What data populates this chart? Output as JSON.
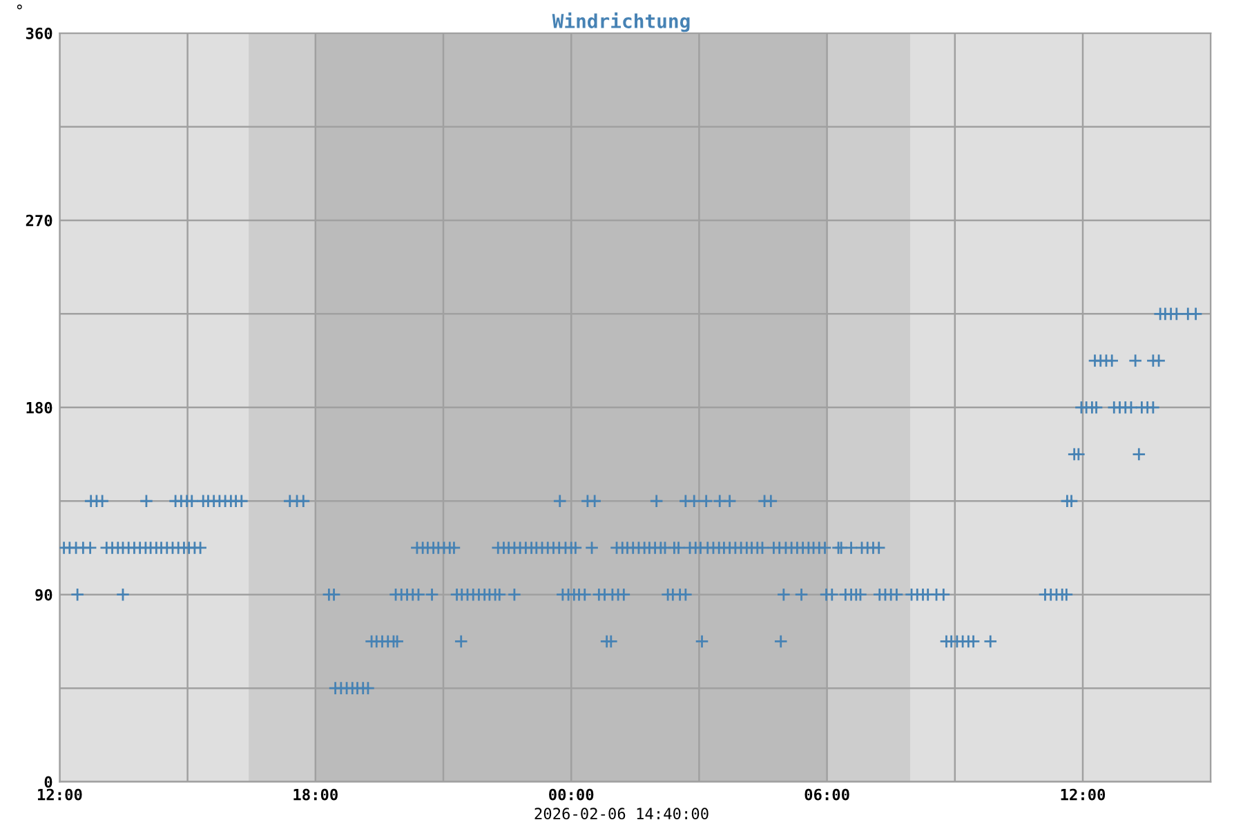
{
  "chart_data": {
    "type": "scatter",
    "title": "Windrichtung",
    "ylabel": "°",
    "annotations": [
      "2026-02-06 14:40:00"
    ],
    "xlim": [
      "2026-02-05T12:00",
      "2026-02-06T15:00"
    ],
    "ylim": [
      0,
      360
    ],
    "xticks": [
      {
        "value": "2026-02-05T12:00",
        "label": "12:00"
      },
      {
        "value": "2026-02-05T15:00",
        "label": null
      },
      {
        "value": "2026-02-05T18:00",
        "label": "18:00"
      },
      {
        "value": "2026-02-05T21:00",
        "label": null
      },
      {
        "value": "2026-02-06T00:00",
        "label": "00:00"
      },
      {
        "value": "2026-02-06T03:00",
        "label": null
      },
      {
        "value": "2026-02-06T06:00",
        "label": "06:00"
      },
      {
        "value": "2026-02-06T09:00",
        "label": null
      },
      {
        "value": "2026-02-06T12:00",
        "label": "12:00"
      },
      {
        "value": "2026-02-06T15:00",
        "label": null
      }
    ],
    "yticks": [
      0,
      {
        "value": 45,
        "label": null
      },
      90,
      {
        "value": 135,
        "label": null
      },
      180,
      {
        "value": 225,
        "label": null
      },
      270,
      {
        "value": 315,
        "label": null
      },
      360
    ],
    "grid": true,
    "legend": false,
    "marker": "cross",
    "bands": [
      {
        "axis": "x",
        "from": "2026-02-05T16:26",
        "to": "2026-02-05T18:00",
        "color": "#cdcdcd"
      },
      {
        "axis": "x",
        "from": "2026-02-05T18:00",
        "to": "2026-02-06T06:00",
        "color": "#bbbbbb"
      },
      {
        "axis": "x",
        "from": "2026-02-06T06:00",
        "to": "2026-02-06T07:57",
        "color": "#cdcdcd"
      }
    ],
    "series": [
      {
        "color": "#4682b4",
        "x": [
          "2026-02-05T12:06",
          "2026-02-05T12:14",
          "2026-02-05T12:23",
          "2026-02-05T12:33",
          "2026-02-05T12:43",
          "2026-02-05T12:25",
          "2026-02-05T12:44",
          "2026-02-05T12:52",
          "2026-02-05T13:00",
          "2026-02-05T13:06",
          "2026-02-05T13:14",
          "2026-02-05T13:22",
          "2026-02-05T13:29",
          "2026-02-05T13:37",
          "2026-02-05T13:45",
          "2026-02-05T13:53",
          "2026-02-05T14:01",
          "2026-02-05T14:08",
          "2026-02-05T14:16",
          "2026-02-05T14:23",
          "2026-02-05T14:31",
          "2026-02-05T14:39",
          "2026-02-05T14:47",
          "2026-02-05T14:55",
          "2026-02-05T15:02",
          "2026-02-05T15:10",
          "2026-02-05T15:18",
          "2026-02-05T13:29",
          "2026-02-05T14:02",
          "2026-02-05T14:43",
          "2026-02-05T14:51",
          "2026-02-05T14:59",
          "2026-02-05T15:06",
          "2026-02-05T15:22",
          "2026-02-05T15:29",
          "2026-02-05T15:37",
          "2026-02-05T15:45",
          "2026-02-05T15:53",
          "2026-02-05T16:01",
          "2026-02-05T16:08",
          "2026-02-05T16:16",
          "2026-02-05T17:24",
          "2026-02-05T17:34",
          "2026-02-05T17:43",
          "2026-02-05T18:19",
          "2026-02-05T18:26",
          "2026-02-05T18:28",
          "2026-02-05T18:36",
          "2026-02-05T18:44",
          "2026-02-05T18:52",
          "2026-02-05T18:59",
          "2026-02-05T19:07",
          "2026-02-05T19:14",
          "2026-02-05T19:19",
          "2026-02-05T19:26",
          "2026-02-05T19:34",
          "2026-02-05T19:42",
          "2026-02-05T19:50",
          "2026-02-05T19:55",
          "2026-02-05T19:53",
          "2026-02-05T20:01",
          "2026-02-05T20:09",
          "2026-02-05T20:17",
          "2026-02-05T20:25",
          "2026-02-05T20:23",
          "2026-02-05T20:31",
          "2026-02-05T20:38",
          "2026-02-05T20:46",
          "2026-02-05T20:53",
          "2026-02-05T21:01",
          "2026-02-05T21:09",
          "2026-02-05T21:15",
          "2026-02-05T20:44",
          "2026-02-05T21:19",
          "2026-02-05T21:26",
          "2026-02-05T21:34",
          "2026-02-05T21:42",
          "2026-02-05T21:50",
          "2026-02-05T21:58",
          "2026-02-05T22:05",
          "2026-02-05T22:13",
          "2026-02-05T22:19",
          "2026-02-05T21:25",
          "2026-02-05T22:17",
          "2026-02-05T22:25",
          "2026-02-05T22:32",
          "2026-02-05T22:40",
          "2026-02-05T22:48",
          "2026-02-05T22:56",
          "2026-02-05T23:04",
          "2026-02-05T23:11",
          "2026-02-05T23:19",
          "2026-02-05T23:27",
          "2026-02-05T23:35",
          "2026-02-05T23:43",
          "2026-02-05T22:40",
          "2026-02-05T23:44",
          "2026-02-05T23:52",
          "2026-02-06T00:00",
          "2026-02-06T00:06",
          "2026-02-05T23:48",
          "2026-02-05T23:56",
          "2026-02-06T00:04",
          "2026-02-06T00:11",
          "2026-02-06T00:19",
          "2026-02-06T00:23",
          "2026-02-06T00:33",
          "2026-02-06T00:29",
          "2026-02-06T00:39",
          "2026-02-06T00:47",
          "2026-02-06T00:58",
          "2026-02-06T01:06",
          "2026-02-06T01:14",
          "2026-02-06T00:50",
          "2026-02-06T00:56",
          "2026-02-06T01:04",
          "2026-02-06T01:12",
          "2026-02-06T01:19",
          "2026-02-06T01:27",
          "2026-02-06T01:35",
          "2026-02-06T01:43",
          "2026-02-06T01:50",
          "2026-02-06T01:58",
          "2026-02-06T02:06",
          "2026-02-06T02:12",
          "2026-02-06T02:00",
          "2026-02-06T02:16",
          "2026-02-06T02:23",
          "2026-02-06T02:33",
          "2026-02-06T02:41",
          "2026-02-06T02:25",
          "2026-02-06T02:31",
          "2026-02-06T02:41",
          "2026-02-06T02:53",
          "2026-02-06T03:10",
          "2026-02-06T02:47",
          "2026-02-06T02:55",
          "2026-02-06T03:02",
          "2026-02-06T03:04",
          "2026-02-06T03:12",
          "2026-02-06T03:20",
          "2026-02-06T03:28",
          "2026-02-06T03:35",
          "2026-02-06T03:43",
          "2026-02-06T03:51",
          "2026-02-06T03:59",
          "2026-02-06T04:07",
          "2026-02-06T04:14",
          "2026-02-06T04:22",
          "2026-02-06T04:29",
          "2026-02-06T03:29",
          "2026-02-06T03:43",
          "2026-02-06T04:32",
          "2026-02-06T04:41",
          "2026-02-06T04:45",
          "2026-02-06T04:53",
          "2026-02-06T04:55",
          "2026-02-06T04:59",
          "2026-02-06T05:02",
          "2026-02-06T05:10",
          "2026-02-06T05:18",
          "2026-02-06T05:26",
          "2026-02-06T05:34",
          "2026-02-06T05:41",
          "2026-02-06T05:49",
          "2026-02-06T05:57",
          "2026-02-06T05:24",
          "2026-02-06T05:59",
          "2026-02-06T06:07",
          "2026-02-06T06:16",
          "2026-02-06T06:20",
          "2026-02-06T06:34",
          "2026-02-06T06:49",
          "2026-02-06T06:57",
          "2026-02-06T07:05",
          "2026-02-06T07:13",
          "2026-02-06T06:26",
          "2026-02-06T06:34",
          "2026-02-06T06:41",
          "2026-02-06T06:47",
          "2026-02-06T07:14",
          "2026-02-06T07:22",
          "2026-02-06T07:30",
          "2026-02-06T07:38",
          "2026-02-06T07:59",
          "2026-02-06T08:07",
          "2026-02-06T08:15",
          "2026-02-06T08:22",
          "2026-02-06T08:34",
          "2026-02-06T08:44",
          "2026-02-06T08:48",
          "2026-02-06T08:55",
          "2026-02-06T09:03",
          "2026-02-06T09:11",
          "2026-02-06T09:19",
          "2026-02-06T09:26",
          "2026-02-06T09:50",
          "2026-02-06T11:07",
          "2026-02-06T11:15",
          "2026-02-06T11:23",
          "2026-02-06T11:31",
          "2026-02-06T11:37",
          "2026-02-06T11:38",
          "2026-02-06T11:44",
          "2026-02-06T11:48",
          "2026-02-06T11:54",
          "2026-02-06T11:58",
          "2026-02-06T12:05",
          "2026-02-06T12:13",
          "2026-02-06T12:19",
          "2026-02-06T12:17",
          "2026-02-06T12:25",
          "2026-02-06T12:33",
          "2026-02-06T12:41",
          "2026-02-06T12:44",
          "2026-02-06T12:52",
          "2026-02-06T13:00",
          "2026-02-06T13:08",
          "2026-02-06T13:14",
          "2026-02-06T13:19",
          "2026-02-06T13:23",
          "2026-02-06T13:31",
          "2026-02-06T13:39",
          "2026-02-06T13:39",
          "2026-02-06T13:47",
          "2026-02-06T13:49",
          "2026-02-06T13:56",
          "2026-02-06T14:04",
          "2026-02-06T14:12",
          "2026-02-06T14:28",
          "2026-02-06T14:39"
        ],
        "values": [
          112.5,
          112.5,
          112.5,
          112.5,
          112.5,
          90,
          135,
          135,
          135,
          112.5,
          112.5,
          112.5,
          112.5,
          112.5,
          112.5,
          112.5,
          112.5,
          112.5,
          112.5,
          112.5,
          112.5,
          112.5,
          112.5,
          112.5,
          112.5,
          112.5,
          112.5,
          90,
          135,
          135,
          135,
          135,
          135,
          135,
          135,
          135,
          135,
          135,
          135,
          135,
          135,
          135,
          135,
          135,
          90,
          90,
          45,
          45,
          45,
          45,
          45,
          45,
          45,
          67.5,
          67.5,
          67.5,
          67.5,
          67.5,
          67.5,
          90,
          90,
          90,
          90,
          90,
          112.5,
          112.5,
          112.5,
          112.5,
          112.5,
          112.5,
          112.5,
          112.5,
          90,
          90,
          90,
          90,
          90,
          90,
          90,
          90,
          90,
          90,
          67.5,
          112.5,
          112.5,
          112.5,
          112.5,
          112.5,
          112.5,
          112.5,
          112.5,
          112.5,
          112.5,
          112.5,
          112.5,
          90,
          135,
          112.5,
          112.5,
          112.5,
          90,
          90,
          90,
          90,
          90,
          135,
          135,
          112.5,
          90,
          90,
          90,
          90,
          90,
          67.5,
          67.5,
          112.5,
          112.5,
          112.5,
          112.5,
          112.5,
          112.5,
          112.5,
          112.5,
          112.5,
          112.5,
          135,
          90,
          90,
          90,
          90,
          112.5,
          112.5,
          135,
          135,
          135,
          112.5,
          112.5,
          112.5,
          67.5,
          112.5,
          112.5,
          112.5,
          112.5,
          112.5,
          112.5,
          112.5,
          112.5,
          112.5,
          112.5,
          112.5,
          135,
          135,
          135,
          135,
          112.5,
          112.5,
          67.5,
          90,
          112.5,
          112.5,
          112.5,
          112.5,
          112.5,
          112.5,
          112.5,
          112.5,
          90,
          90,
          90,
          112.5,
          112.5,
          112.5,
          112.5,
          112.5,
          112.5,
          112.5,
          90,
          90,
          90,
          90,
          90,
          90,
          90,
          90,
          90,
          90,
          90,
          90,
          90,
          90,
          67.5,
          67.5,
          67.5,
          67.5,
          67.5,
          67.5,
          67.5,
          90,
          90,
          90,
          90,
          90,
          135,
          135,
          157.5,
          157.5,
          180,
          180,
          180,
          180,
          202.5,
          202.5,
          202.5,
          202.5,
          180,
          180,
          180,
          180,
          202.5,
          157.5,
          180,
          180,
          180,
          202.5,
          202.5,
          225,
          225,
          225,
          225,
          225,
          225
        ]
      }
    ]
  }
}
